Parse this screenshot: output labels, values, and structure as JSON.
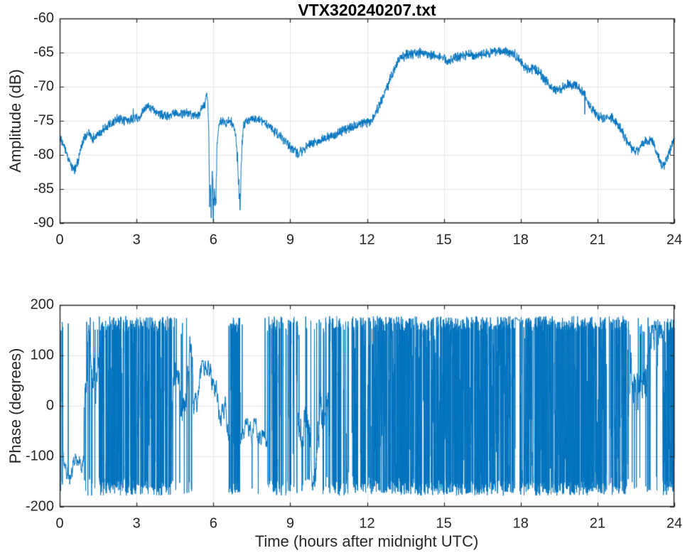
{
  "figure": {
    "title": "VTX320240207.txt",
    "background": "#ffffff"
  },
  "colors": {
    "line": "#0072bd",
    "grid": "#e6e6e6",
    "axis": "#262626",
    "text": "#262626",
    "title_text": "#000000"
  },
  "chart_data": [
    {
      "type": "line",
      "title": "VTX320240207.txt",
      "ylabel": "Amplitude (dB)",
      "xlim": [
        0,
        24
      ],
      "ylim": [
        -90,
        -60
      ],
      "x_ticks": [
        0,
        3,
        6,
        9,
        12,
        15,
        18,
        21,
        24
      ],
      "y_ticks": [
        -90,
        -85,
        -80,
        -75,
        -70,
        -65,
        -60
      ],
      "grid": true,
      "noise_db": 0.85,
      "series_keypoints": [
        [
          0,
          -77.6
        ],
        [
          0.15,
          -78.6
        ],
        [
          0.3,
          -80.2
        ],
        [
          0.45,
          -81.5
        ],
        [
          0.58,
          -82.3
        ],
        [
          0.7,
          -81.2
        ],
        [
          0.85,
          -78.8
        ],
        [
          1.0,
          -77.2
        ],
        [
          1.15,
          -76.9
        ],
        [
          1.3,
          -77.6
        ],
        [
          1.45,
          -77.2
        ],
        [
          1.6,
          -76.6
        ],
        [
          1.8,
          -75.9
        ],
        [
          2.0,
          -75.3
        ],
        [
          2.2,
          -74.8
        ],
        [
          2.45,
          -74.9
        ],
        [
          2.7,
          -75.0
        ],
        [
          2.9,
          -74.6
        ],
        [
          3.1,
          -74.4
        ],
        [
          3.3,
          -73.4
        ],
        [
          3.45,
          -72.9
        ],
        [
          3.6,
          -73.3
        ],
        [
          3.8,
          -73.8
        ],
        [
          4.0,
          -74.1
        ],
        [
          4.25,
          -74.3
        ],
        [
          4.5,
          -74.0
        ],
        [
          4.75,
          -73.9
        ],
        [
          5.0,
          -73.8
        ],
        [
          5.15,
          -74.3
        ],
        [
          5.3,
          -74.4
        ],
        [
          5.45,
          -73.9
        ],
        [
          5.6,
          -72.9
        ],
        [
          5.7,
          -72.4
        ],
        [
          5.74,
          -70.7
        ],
        [
          5.78,
          -72.0
        ],
        [
          5.82,
          -76.5
        ],
        [
          5.86,
          -88.5
        ],
        [
          5.89,
          -84.0
        ],
        [
          5.92,
          -89.6
        ],
        [
          5.96,
          -81.0
        ],
        [
          6.0,
          -89.8
        ],
        [
          6.04,
          -85.0
        ],
        [
          6.08,
          -89.2
        ],
        [
          6.12,
          -83.0
        ],
        [
          6.16,
          -77.5
        ],
        [
          6.22,
          -75.6
        ],
        [
          6.35,
          -74.9
        ],
        [
          6.5,
          -75.2
        ],
        [
          6.65,
          -74.9
        ],
        [
          6.8,
          -76.0
        ],
        [
          6.88,
          -77.5
        ],
        [
          6.94,
          -80.5
        ],
        [
          7.0,
          -86.0
        ],
        [
          7.04,
          -87.3
        ],
        [
          7.08,
          -84.0
        ],
        [
          7.12,
          -78.5
        ],
        [
          7.18,
          -75.8
        ],
        [
          7.3,
          -74.9
        ],
        [
          7.5,
          -74.6
        ],
        [
          7.7,
          -74.7
        ],
        [
          7.9,
          -75.0
        ],
        [
          8.1,
          -75.6
        ],
        [
          8.35,
          -76.4
        ],
        [
          8.6,
          -77.3
        ],
        [
          8.85,
          -78.2
        ],
        [
          9.1,
          -79.3
        ],
        [
          9.35,
          -79.8
        ],
        [
          9.6,
          -78.9
        ],
        [
          9.85,
          -78.3
        ],
        [
          10.1,
          -77.9
        ],
        [
          10.35,
          -77.6
        ],
        [
          10.6,
          -77.3
        ],
        [
          10.85,
          -76.8
        ],
        [
          11.1,
          -76.3
        ],
        [
          11.35,
          -76.0
        ],
        [
          11.6,
          -75.7
        ],
        [
          11.85,
          -75.4
        ],
        [
          12.1,
          -75.1
        ],
        [
          12.3,
          -74.2
        ],
        [
          12.45,
          -72.9
        ],
        [
          12.6,
          -71.8
        ],
        [
          12.8,
          -70.0
        ],
        [
          13.0,
          -68.0
        ],
        [
          13.2,
          -66.4
        ],
        [
          13.35,
          -65.7
        ],
        [
          13.5,
          -65.4
        ],
        [
          13.8,
          -65.2
        ],
        [
          14.1,
          -65.0
        ],
        [
          14.4,
          -65.3
        ],
        [
          14.7,
          -65.5
        ],
        [
          15.0,
          -65.8
        ],
        [
          15.15,
          -66.4
        ],
        [
          15.3,
          -66.0
        ],
        [
          15.5,
          -65.7
        ],
        [
          15.75,
          -65.5
        ],
        [
          16.0,
          -65.3
        ],
        [
          16.25,
          -65.5
        ],
        [
          16.5,
          -65.2
        ],
        [
          16.75,
          -65.1
        ],
        [
          17.0,
          -64.9
        ],
        [
          17.25,
          -64.8
        ],
        [
          17.5,
          -64.9
        ],
        [
          17.75,
          -65.2
        ],
        [
          17.95,
          -66.1
        ],
        [
          18.15,
          -67.1
        ],
        [
          18.35,
          -67.6
        ],
        [
          18.55,
          -67.4
        ],
        [
          18.75,
          -68.0
        ],
        [
          18.95,
          -68.9
        ],
        [
          19.15,
          -70.1
        ],
        [
          19.3,
          -70.6
        ],
        [
          19.5,
          -70.4
        ],
        [
          19.7,
          -70.0
        ],
        [
          19.9,
          -69.7
        ],
        [
          20.1,
          -69.8
        ],
        [
          20.3,
          -70.3
        ],
        [
          20.5,
          -71.3
        ],
        [
          20.7,
          -72.7
        ],
        [
          20.9,
          -73.9
        ],
        [
          21.1,
          -74.4
        ],
        [
          21.3,
          -74.6
        ],
        [
          21.5,
          -74.3
        ],
        [
          21.7,
          -74.9
        ],
        [
          21.9,
          -76.2
        ],
        [
          22.1,
          -77.6
        ],
        [
          22.3,
          -78.9
        ],
        [
          22.5,
          -79.5
        ],
        [
          22.65,
          -79.0
        ],
        [
          22.8,
          -78.2
        ],
        [
          23.0,
          -77.7
        ],
        [
          23.15,
          -78.1
        ],
        [
          23.3,
          -79.6
        ],
        [
          23.45,
          -81.2
        ],
        [
          23.6,
          -81.6
        ],
        [
          23.75,
          -80.3
        ],
        [
          23.9,
          -78.6
        ],
        [
          24,
          -77.8
        ]
      ]
    },
    {
      "type": "line",
      "ylabel": "Phase (degrees)",
      "xlabel": "Time (hours after midnight UTC)",
      "xlim": [
        0,
        24
      ],
      "ylim": [
        -200,
        200
      ],
      "x_ticks": [
        0,
        3,
        6,
        9,
        12,
        15,
        18,
        21,
        24
      ],
      "y_ticks": [
        -200,
        -100,
        0,
        100,
        200
      ],
      "grid": true,
      "phase_limit_deg": 180,
      "segments": [
        {
          "from": 0.0,
          "to": 0.12,
          "mode": "wild",
          "density": 0.5
        },
        {
          "from": 0.12,
          "to": 0.95,
          "mode": "coherent",
          "center": -90,
          "wander": 55,
          "step": 20,
          "spike": 0.012
        },
        {
          "from": 0.95,
          "to": 1.55,
          "mode": "semi",
          "step": 45,
          "jump": 0.2
        },
        {
          "from": 1.55,
          "to": 3.35,
          "mode": "wild",
          "density": 0.93
        },
        {
          "from": 3.35,
          "to": 4.4,
          "mode": "wild",
          "density": 0.78
        },
        {
          "from": 4.4,
          "to": 5.2,
          "mode": "semi",
          "step": 45,
          "jump": 0.16
        },
        {
          "from": 5.2,
          "to": 6.6,
          "mode": "coherent",
          "center": 10,
          "wander": 80,
          "step": 26,
          "spike": 0.02
        },
        {
          "from": 6.6,
          "to": 7.05,
          "mode": "wild",
          "density": 0.85
        },
        {
          "from": 7.05,
          "to": 8.1,
          "mode": "coherent",
          "center": -80,
          "wander": 55,
          "step": 22,
          "spike": 0.02
        },
        {
          "from": 8.1,
          "to": 9.3,
          "mode": "wild",
          "density": 0.6
        },
        {
          "from": 9.3,
          "to": 10.5,
          "mode": "semi",
          "step": 50,
          "jump": 0.14
        },
        {
          "from": 10.5,
          "to": 11.4,
          "mode": "wild",
          "density": 0.65
        },
        {
          "from": 11.4,
          "to": 12.2,
          "mode": "wild",
          "density": 0.8
        },
        {
          "from": 12.2,
          "to": 17.78,
          "mode": "wild",
          "density": 0.975
        },
        {
          "from": 17.78,
          "to": 17.97,
          "mode": "coherent",
          "center": 175,
          "wander": 5,
          "step": 4,
          "spike": 0
        },
        {
          "from": 17.97,
          "to": 21.15,
          "mode": "wild",
          "density": 0.96
        },
        {
          "from": 21.15,
          "to": 22.25,
          "mode": "wild",
          "density": 0.78
        },
        {
          "from": 22.25,
          "to": 23.55,
          "mode": "semi",
          "step": 55,
          "jump": 0.12
        },
        {
          "from": 23.55,
          "to": 24.0,
          "mode": "wild",
          "density": 0.88
        }
      ]
    }
  ]
}
